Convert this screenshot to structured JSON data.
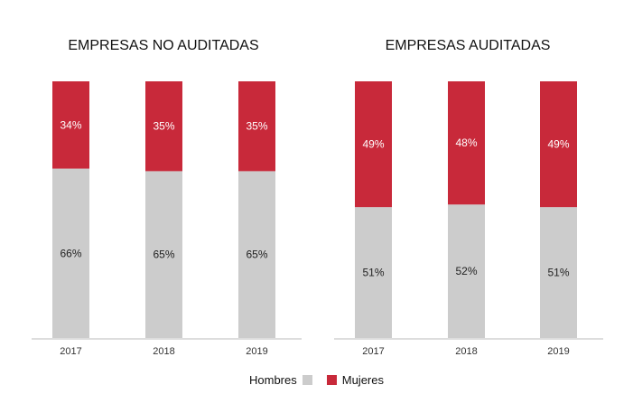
{
  "chart_data": [
    {
      "type": "bar",
      "stacked": true,
      "title": "EMPRESAS NO AUDITADAS",
      "categories": [
        "2017",
        "2018",
        "2019"
      ],
      "series": [
        {
          "name": "Hombres",
          "values": [
            66,
            65,
            65
          ],
          "labels": [
            "66%",
            "65%",
            "65%"
          ]
        },
        {
          "name": "Mujeres",
          "values": [
            34,
            35,
            35
          ],
          "labels": [
            "34%",
            "35%",
            "35%"
          ]
        }
      ],
      "ylim": [
        0,
        100
      ],
      "grid": false
    },
    {
      "type": "bar",
      "stacked": true,
      "title": "EMPRESAS AUDITADAS",
      "categories": [
        "2017",
        "2018",
        "2019"
      ],
      "series": [
        {
          "name": "Hombres",
          "values": [
            51,
            52,
            51
          ],
          "labels": [
            "51%",
            "52%",
            "51%"
          ]
        },
        {
          "name": "Mujeres",
          "values": [
            49,
            48,
            49
          ],
          "labels": [
            "49%",
            "48%",
            "49%"
          ]
        }
      ],
      "ylim": [
        0,
        100
      ],
      "grid": false
    }
  ],
  "legend": {
    "placement": "bottom",
    "items": [
      {
        "label": "Hombres",
        "color": "#cccccc"
      },
      {
        "label": "Mujeres",
        "color": "#c8293a"
      }
    ]
  },
  "colors": {
    "hombres": "#cccccc",
    "mujeres": "#c8293a",
    "label_on_red": "#ffffff",
    "label_on_gray": "#222222",
    "axis": "#bbbbbb"
  }
}
